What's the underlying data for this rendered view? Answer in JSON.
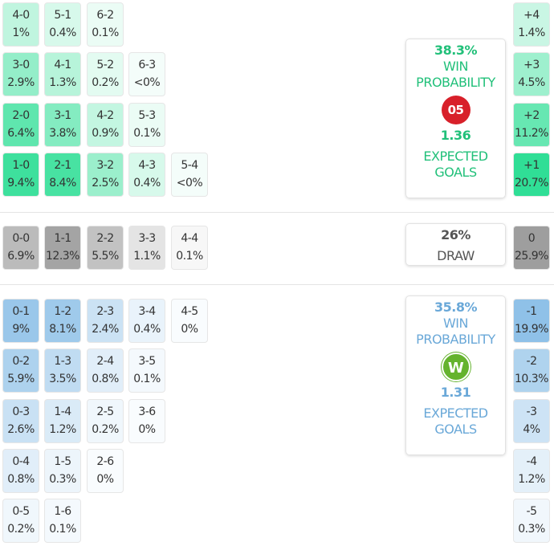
{
  "colors": {
    "home": "#2ede95",
    "away": "#8fc1e8",
    "draw": "#9e9e9e",
    "home_text": "#22c07a",
    "away_text": "#6aa8d8",
    "draw_text": "#555555"
  },
  "home_grid": [
    [
      {
        "score": "4-0",
        "pct": "1%"
      },
      {
        "score": "5-1",
        "pct": "0.4%"
      },
      {
        "score": "6-2",
        "pct": "0.1%"
      }
    ],
    [
      {
        "score": "3-0",
        "pct": "2.9%"
      },
      {
        "score": "4-1",
        "pct": "1.3%"
      },
      {
        "score": "5-2",
        "pct": "0.2%"
      },
      {
        "score": "6-3",
        "pct": "<0%"
      }
    ],
    [
      {
        "score": "2-0",
        "pct": "6.4%"
      },
      {
        "score": "3-1",
        "pct": "3.8%"
      },
      {
        "score": "4-2",
        "pct": "0.9%"
      },
      {
        "score": "5-3",
        "pct": "0.1%"
      }
    ],
    [
      {
        "score": "1-0",
        "pct": "9.4%"
      },
      {
        "score": "2-1",
        "pct": "8.4%"
      },
      {
        "score": "3-2",
        "pct": "2.5%"
      },
      {
        "score": "4-3",
        "pct": "0.4%"
      },
      {
        "score": "5-4",
        "pct": "<0%"
      }
    ]
  ],
  "draw_grid": [
    {
      "score": "0-0",
      "pct": "6.9%"
    },
    {
      "score": "1-1",
      "pct": "12.3%"
    },
    {
      "score": "2-2",
      "pct": "5.5%"
    },
    {
      "score": "3-3",
      "pct": "1.1%"
    },
    {
      "score": "4-4",
      "pct": "0.1%"
    }
  ],
  "away_grid": [
    [
      {
        "score": "0-1",
        "pct": "9%"
      },
      {
        "score": "1-2",
        "pct": "8.1%"
      },
      {
        "score": "2-3",
        "pct": "2.4%"
      },
      {
        "score": "3-4",
        "pct": "0.4%"
      },
      {
        "score": "4-5",
        "pct": "0%"
      }
    ],
    [
      {
        "score": "0-2",
        "pct": "5.9%"
      },
      {
        "score": "1-3",
        "pct": "3.5%"
      },
      {
        "score": "2-4",
        "pct": "0.8%"
      },
      {
        "score": "3-5",
        "pct": "0.1%"
      }
    ],
    [
      {
        "score": "0-3",
        "pct": "2.6%"
      },
      {
        "score": "1-4",
        "pct": "1.2%"
      },
      {
        "score": "2-5",
        "pct": "0.2%"
      },
      {
        "score": "3-6",
        "pct": "0%"
      }
    ],
    [
      {
        "score": "0-4",
        "pct": "0.8%"
      },
      {
        "score": "1-5",
        "pct": "0.3%"
      },
      {
        "score": "2-6",
        "pct": "0%"
      }
    ],
    [
      {
        "score": "0-5",
        "pct": "0.2%"
      },
      {
        "score": "1-6",
        "pct": "0.1%"
      }
    ]
  ],
  "margins_home": [
    {
      "score": "+4",
      "pct": "1.4%"
    },
    {
      "score": "+3",
      "pct": "4.5%"
    },
    {
      "score": "+2",
      "pct": "11.2%"
    },
    {
      "score": "+1",
      "pct": "20.7%"
    }
  ],
  "margin_draw": {
    "score": "0",
    "pct": "25.9%"
  },
  "margins_away": [
    {
      "score": "-1",
      "pct": "19.9%"
    },
    {
      "score": "-2",
      "pct": "10.3%"
    },
    {
      "score": "-3",
      "pct": "4%"
    },
    {
      "score": "-4",
      "pct": "1.2%"
    },
    {
      "score": "-5",
      "pct": "0.3%"
    }
  ],
  "home_card": {
    "win_pct": "38.3%",
    "win_label1": "WIN",
    "win_label2": "PROBABILITY",
    "xg": "1.36",
    "xg_label1": "EXPECTED",
    "xg_label2": "GOALS",
    "logo": "mainz-05-logo",
    "logo_text": "05"
  },
  "draw_card": {
    "pct": "26%",
    "label": "DRAW"
  },
  "away_card": {
    "win_pct": "35.8%",
    "win_label1": "WIN",
    "win_label2": "PROBABILITY",
    "xg": "1.31",
    "xg_label1": "EXPECTED",
    "xg_label2": "GOALS",
    "logo": "wolfsburg-logo",
    "logo_text": "W"
  }
}
